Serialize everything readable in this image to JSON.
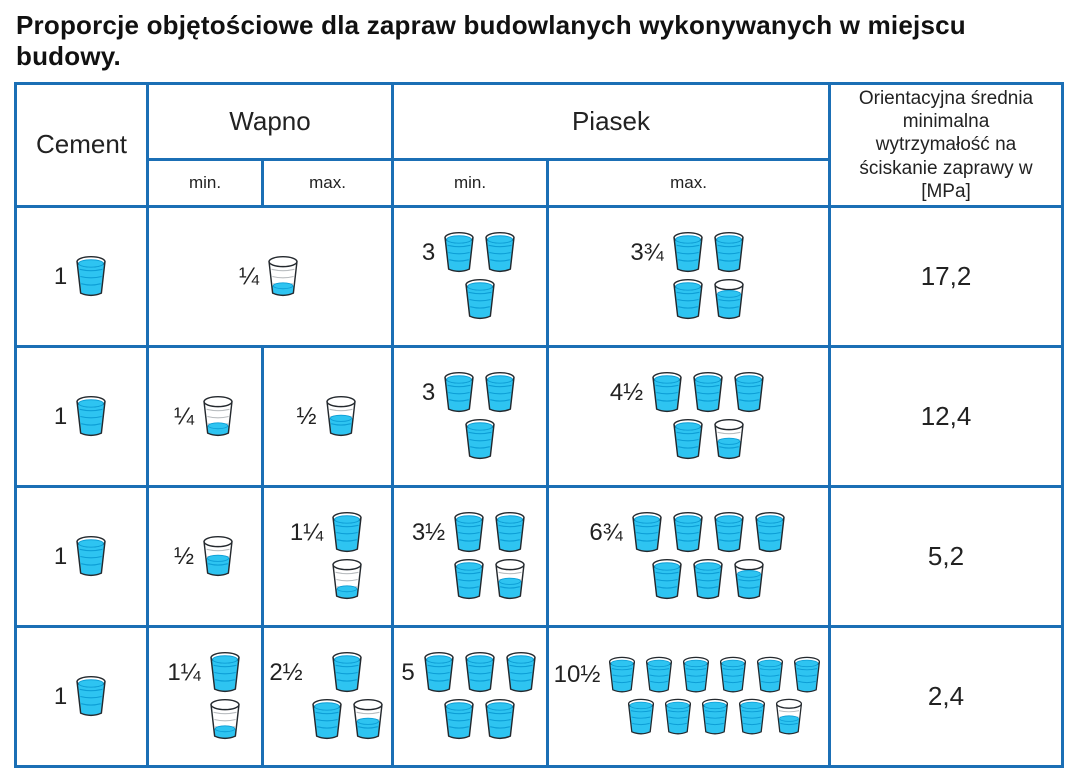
{
  "title": "Proporcje objętościowe dla zapraw budowlanych wykonywanych w miejscu budowy.",
  "colors": {
    "table_border": "#1b6fb5",
    "bucket_fill": "#2ec4f1",
    "bucket_line": "#0d9ed6",
    "text": "#1a1a1a"
  },
  "header": {
    "cement": "Cement",
    "wapno": "Wapno",
    "piasek": "Piasek",
    "min": "min.",
    "max": "max.",
    "strength": "Orientacyjna średnia minimalna wytrzymałość na ściskanie zaprawy w [MPa]"
  },
  "rows": [
    {
      "cement": {
        "label": "1",
        "buckets": [
          [
            1
          ]
        ]
      },
      "wapno": {
        "label": "¼",
        "buckets": [
          [
            0.25
          ]
        ]
      },
      "piasek_min": {
        "label": "3",
        "buckets": [
          [
            1,
            1
          ],
          [
            1
          ]
        ]
      },
      "piasek_max": {
        "label": "3¾",
        "buckets": [
          [
            1,
            1
          ],
          [
            1,
            0.75
          ]
        ]
      },
      "strength": "17,2"
    },
    {
      "cement": {
        "label": "1",
        "buckets": [
          [
            1
          ]
        ]
      },
      "wapno_min": {
        "label": "¼",
        "buckets": [
          [
            0.25
          ]
        ]
      },
      "wapno_max": {
        "label": "½",
        "buckets": [
          [
            0.5
          ]
        ]
      },
      "piasek_min": {
        "label": "3",
        "buckets": [
          [
            1,
            1
          ],
          [
            1
          ]
        ]
      },
      "piasek_max": {
        "label": "4½",
        "buckets": [
          [
            1,
            1,
            1
          ],
          [
            1,
            0.5
          ]
        ]
      },
      "strength": "12,4"
    },
    {
      "cement": {
        "label": "1",
        "buckets": [
          [
            1
          ]
        ]
      },
      "wapno_min": {
        "label": "½",
        "buckets": [
          [
            0.5
          ]
        ]
      },
      "wapno_max": {
        "label": "1¼",
        "buckets": [
          [
            1
          ],
          [
            0.25
          ]
        ]
      },
      "piasek_min": {
        "label": "3½",
        "buckets": [
          [
            1,
            1
          ],
          [
            1,
            0.5
          ]
        ]
      },
      "piasek_max": {
        "label": "6¾",
        "buckets": [
          [
            1,
            1,
            1,
            1
          ],
          [
            1,
            1,
            0.75
          ]
        ]
      },
      "strength": "5,2"
    },
    {
      "cement": {
        "label": "1",
        "buckets": [
          [
            1
          ]
        ]
      },
      "wapno_min": {
        "label": "1¼",
        "buckets": [
          [
            1
          ],
          [
            0.25
          ]
        ]
      },
      "wapno_max": {
        "label": "2½",
        "buckets": [
          [
            1
          ],
          [
            1,
            0.5
          ]
        ]
      },
      "piasek_min": {
        "label": "5",
        "buckets": [
          [
            1,
            1,
            1
          ],
          [
            1,
            1
          ]
        ]
      },
      "piasek_max": {
        "label": "10½",
        "buckets": [
          [
            1,
            1,
            1,
            1,
            1,
            1
          ],
          [
            1,
            1,
            1,
            1,
            0.5
          ]
        ]
      },
      "strength": "2,4"
    }
  ]
}
